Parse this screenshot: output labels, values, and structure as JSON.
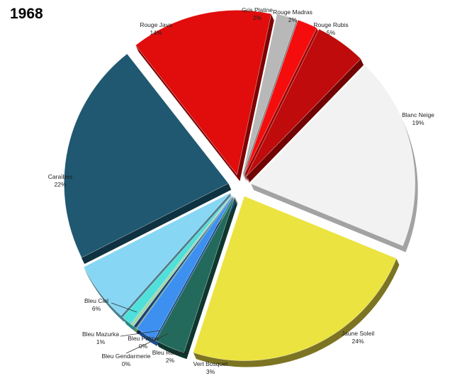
{
  "chart_data": {
    "type": "pie",
    "title": "1968",
    "slices": [
      {
        "label": "Gris Platine",
        "value": 2,
        "value_label": "2%",
        "color": "#b8b8b8",
        "side": "#7a7a7a"
      },
      {
        "label": "Rouge Madras",
        "value": 2,
        "value_label": "2%",
        "color": "#f50d0d",
        "side": "#9a0606"
      },
      {
        "label": "Rouge Rubis",
        "value": 5,
        "value_label": "5%",
        "color": "#bf0b0b",
        "side": "#720404"
      },
      {
        "label": "Blanc Neige",
        "value": 19,
        "value_label": "19%",
        "color": "#f2f2f2",
        "side": "#a3a3a3"
      },
      {
        "label": "Jaune Soleil",
        "value": 24,
        "value_label": "24%",
        "color": "#ebe33f",
        "side": "#7c7423"
      },
      {
        "label": "Vert Bosquet",
        "value": 3,
        "value_label": "3%",
        "color": "#236a5c",
        "side": "#10372f"
      },
      {
        "label": "Bleu Radieux",
        "value": 2,
        "value_label": "2%",
        "color": "#3d90ef",
        "side": "#1d4f8e"
      },
      {
        "label": "Bleu Gendarmerie",
        "value": 0.3,
        "value_label": "0%",
        "color": "#1e3f6e",
        "side": "#0f2240"
      },
      {
        "label": "Bleu Palma",
        "value": 0.3,
        "value_label": "0%",
        "color": "#9fd8a4",
        "side": "#5e8c62"
      },
      {
        "label": "Bleu Mazurka",
        "value": 1,
        "value_label": "1%",
        "color": "#4ee0da",
        "side": "#2a8a86"
      },
      {
        "label": "Bleu Ciel",
        "value": 6,
        "value_label": "6%",
        "color": "#87d6f3",
        "side": "#4c8294"
      },
      {
        "label": "Caraïbes",
        "value": 22,
        "value_label": "22%",
        "color": "#1f5870",
        "side": "#103241"
      },
      {
        "label": "Rouge Java",
        "value": 14,
        "value_label": "14%",
        "color": "#e10c0c",
        "side": "#7e0303"
      }
    ]
  }
}
